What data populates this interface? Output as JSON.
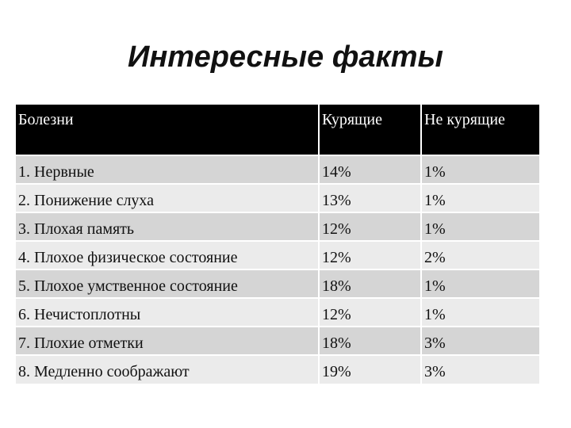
{
  "slide": {
    "title": "Интересные факты"
  },
  "table": {
    "headers": [
      "Болезни",
      "Курящие",
      "Не курящие"
    ],
    "rows": [
      [
        "1. Нервные",
        "14%",
        "1%"
      ],
      [
        "2. Понижение слуха",
        "13%",
        "1%"
      ],
      [
        "3. Плохая память",
        "12%",
        "1%"
      ],
      [
        "4. Плохое физическое состояние",
        "12%",
        "2%"
      ],
      [
        "5. Плохое умственное состояние",
        "18%",
        "1%"
      ],
      [
        "6. Нечистоплотны",
        "12%",
        "1%"
      ],
      [
        "7. Плохие отметки",
        "18%",
        "3%"
      ],
      [
        "8. Медленно соображают",
        "19%",
        "3%"
      ]
    ]
  },
  "colors": {
    "header_background": "#000000",
    "header_text": "#ffffff",
    "row_odd_background": "#d5d5d5",
    "row_even_background": "#ebebeb"
  }
}
